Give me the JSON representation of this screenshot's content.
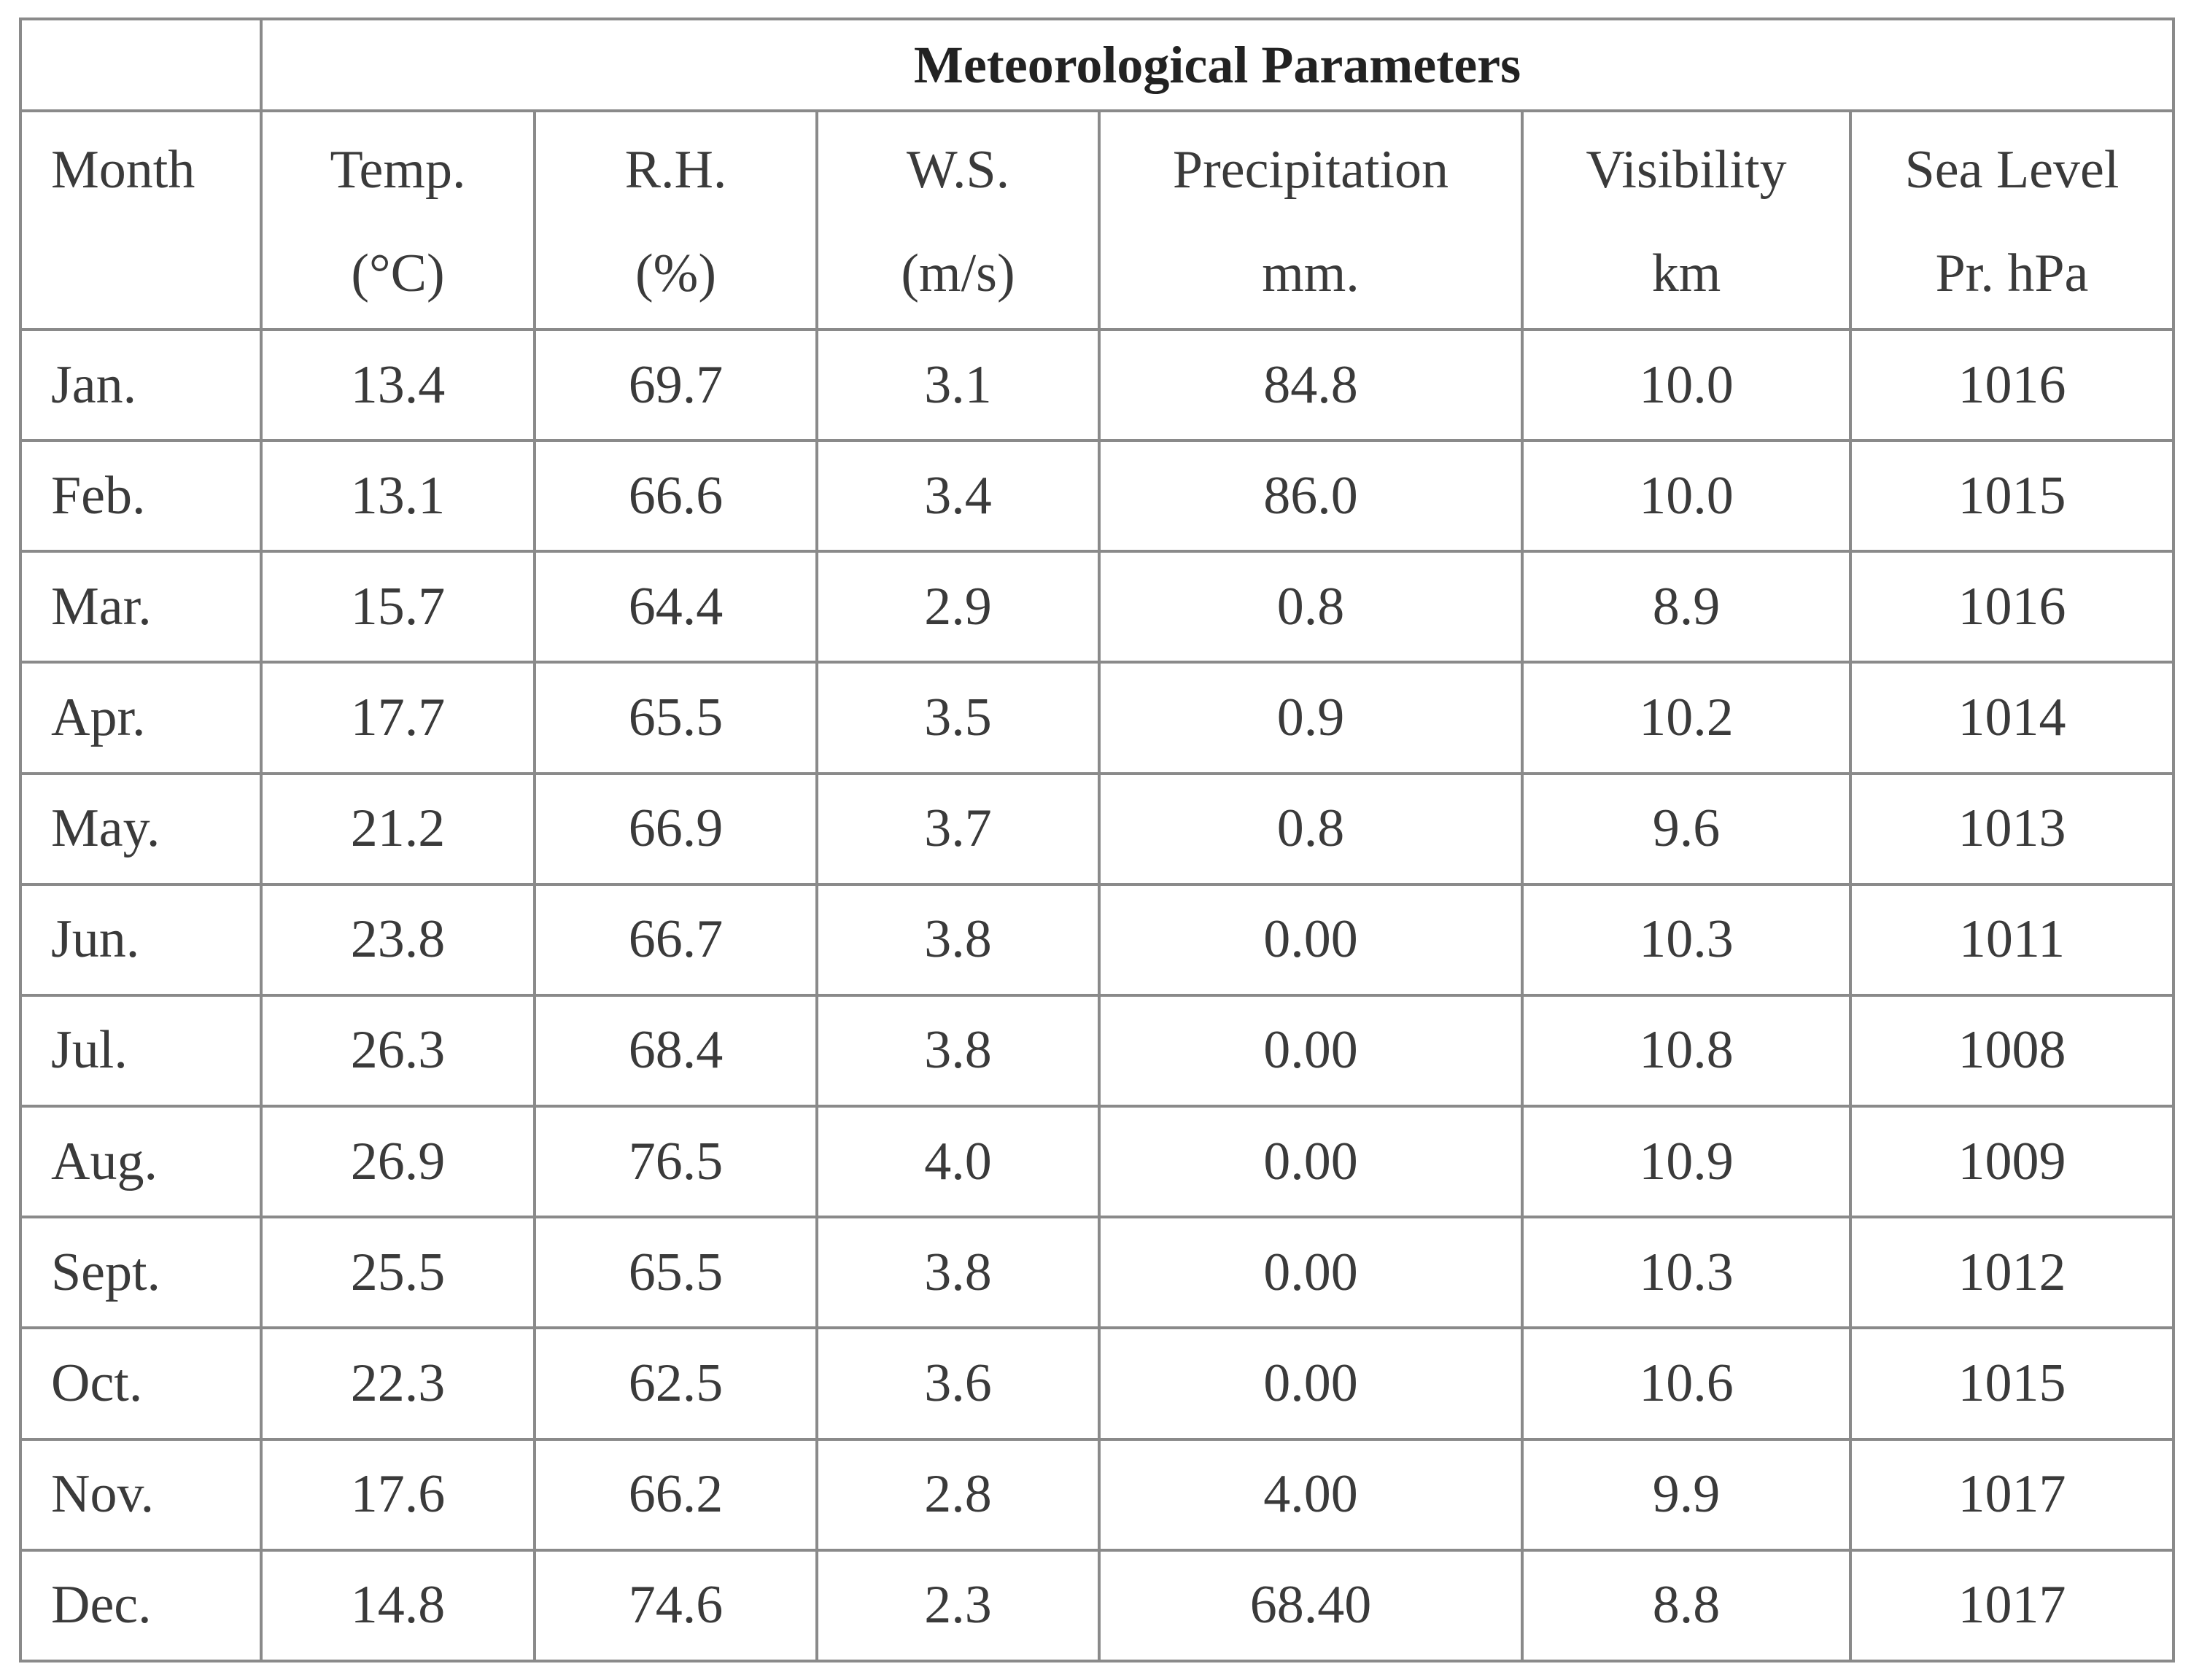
{
  "table": {
    "group_title": "Meteorological Parameters",
    "columns": [
      {
        "line1": "Month",
        "line2": ""
      },
      {
        "line1": "Temp.",
        "line2": "(°C)"
      },
      {
        "line1": "R.H.",
        "line2": "(%)"
      },
      {
        "line1": "W.S.",
        "line2": "(m/s)"
      },
      {
        "line1": "Precipitation",
        "line2": "mm."
      },
      {
        "line1": "Visibility",
        "line2": "km"
      },
      {
        "line1": "Sea Level",
        "line2": "Pr. hPa"
      }
    ],
    "rows": [
      [
        "Jan.",
        "13.4",
        "69.7",
        "3.1",
        "84.8",
        "10.0",
        "1016"
      ],
      [
        "Feb.",
        "13.1",
        "66.6",
        "3.4",
        "86.0",
        "10.0",
        "1015"
      ],
      [
        "Mar.",
        "15.7",
        "64.4",
        "2.9",
        "0.8",
        "8.9",
        "1016"
      ],
      [
        "Apr.",
        "17.7",
        "65.5",
        "3.5",
        "0.9",
        "10.2",
        "1014"
      ],
      [
        "May.",
        "21.2",
        "66.9",
        "3.7",
        "0.8",
        "9.6",
        "1013"
      ],
      [
        "Jun.",
        "23.8",
        "66.7",
        "3.8",
        "0.00",
        "10.3",
        "1011"
      ],
      [
        "Jul.",
        "26.3",
        "68.4",
        "3.8",
        "0.00",
        "10.8",
        "1008"
      ],
      [
        "Aug.",
        "26.9",
        "76.5",
        "4.0",
        "0.00",
        "10.9",
        "1009"
      ],
      [
        "Sept.",
        "25.5",
        "65.5",
        "3.8",
        "0.00",
        "10.3",
        "1012"
      ],
      [
        "Oct.",
        "22.3",
        "62.5",
        "3.6",
        "0.00",
        "10.6",
        "1015"
      ],
      [
        "Nov.",
        "17.6",
        "66.2",
        "2.8",
        "4.00",
        "9.9",
        "1017"
      ],
      [
        "Dec.",
        "14.8",
        "74.6",
        "2.3",
        "68.40",
        "8.8",
        "1017"
      ]
    ]
  },
  "chart_data": {
    "type": "table",
    "title": "Meteorological Parameters",
    "columns": [
      "Month",
      "Temp. (°C)",
      "R.H. (%)",
      "W.S. (m/s)",
      "Precipitation mm.",
      "Visibility km",
      "Sea Level Pr. hPa"
    ],
    "categories": [
      "Jan.",
      "Feb.",
      "Mar.",
      "Apr.",
      "May.",
      "Jun.",
      "Jul.",
      "Aug.",
      "Sept.",
      "Oct.",
      "Nov.",
      "Dec."
    ],
    "series": [
      {
        "name": "Temp. (°C)",
        "values": [
          13.4,
          13.1,
          15.7,
          17.7,
          21.2,
          23.8,
          26.3,
          26.9,
          25.5,
          22.3,
          17.6,
          14.8
        ]
      },
      {
        "name": "R.H. (%)",
        "values": [
          69.7,
          66.6,
          64.4,
          65.5,
          66.9,
          66.7,
          68.4,
          76.5,
          65.5,
          62.5,
          66.2,
          74.6
        ]
      },
      {
        "name": "W.S. (m/s)",
        "values": [
          3.1,
          3.4,
          2.9,
          3.5,
          3.7,
          3.8,
          3.8,
          4.0,
          3.8,
          3.6,
          2.8,
          2.3
        ]
      },
      {
        "name": "Precipitation mm.",
        "values": [
          84.8,
          86.0,
          0.8,
          0.9,
          0.8,
          0.0,
          0.0,
          0.0,
          0.0,
          0.0,
          4.0,
          68.4
        ]
      },
      {
        "name": "Visibility km",
        "values": [
          10.0,
          10.0,
          8.9,
          10.2,
          9.6,
          10.3,
          10.8,
          10.9,
          10.3,
          10.6,
          9.9,
          8.8
        ]
      },
      {
        "name": "Sea Level Pr. hPa",
        "values": [
          1016,
          1015,
          1016,
          1014,
          1013,
          1011,
          1008,
          1009,
          1012,
          1015,
          1017,
          1017
        ]
      }
    ]
  }
}
